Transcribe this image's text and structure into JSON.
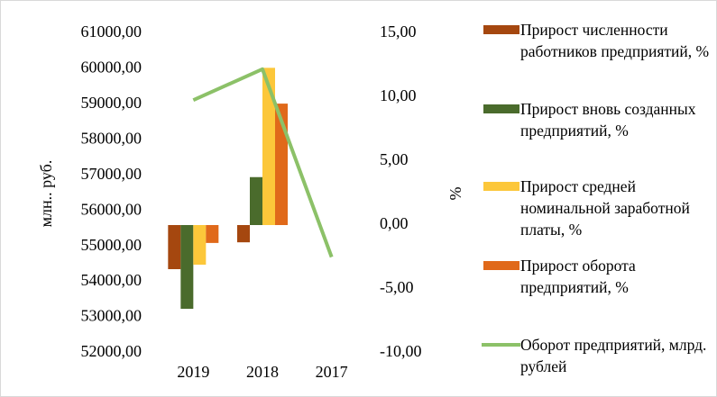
{
  "chart_data": {
    "type": "bar",
    "categories": [
      "2019",
      "2018",
      "2017"
    ],
    "ylabel": "млн.. руб.",
    "y2label": "%",
    "ylim": [
      52000,
      61000
    ],
    "yticks": [
      {
        "value": 52000,
        "label": "52000,00"
      },
      {
        "value": 53000,
        "label": "53000,00"
      },
      {
        "value": 54000,
        "label": "54000,00"
      },
      {
        "value": 55000,
        "label": "55000,00"
      },
      {
        "value": 56000,
        "label": "56000,00"
      },
      {
        "value": 57000,
        "label": "57000,00"
      },
      {
        "value": 58000,
        "label": "58000,00"
      },
      {
        "value": 59000,
        "label": "59000,00"
      },
      {
        "value": 60000,
        "label": "60000,00"
      },
      {
        "value": 61000,
        "label": "61000,00"
      }
    ],
    "y2lim": [
      -10,
      15
    ],
    "y2ticks": [
      {
        "value": -10,
        "label": "-10,00"
      },
      {
        "value": -5,
        "label": "-5,00"
      },
      {
        "value": 0,
        "label": "0,00"
      },
      {
        "value": 5,
        "label": "5,00"
      },
      {
        "value": 10,
        "label": "10,00"
      },
      {
        "value": 15,
        "label": "15,00"
      }
    ],
    "series": [
      {
        "name": "Прирост численности работников предприятий, %",
        "color": "#a5470f",
        "axis": "y2",
        "values": [
          -3.45,
          -1.35,
          null
        ]
      },
      {
        "name": "Прирост вновь созданных предприятий, %",
        "color": "#4a6b2c",
        "axis": "y2",
        "values": [
          -6.55,
          3.75,
          null
        ]
      },
      {
        "name": "Прирост средней номинальной заработной платы, %",
        "color": "#fcc73a",
        "axis": "y2",
        "values": [
          -3.1,
          12.3,
          null
        ]
      },
      {
        "name": "Прирост оборота предприятий, %",
        "color": "#e0691a",
        "axis": "y2",
        "values": [
          -1.4,
          9.5,
          null
        ]
      },
      {
        "name": "Оборот предприятий, млрд. рублей",
        "color": "#8cc168",
        "type": "line",
        "values": [
          59120,
          59990,
          54700
        ]
      }
    ]
  }
}
